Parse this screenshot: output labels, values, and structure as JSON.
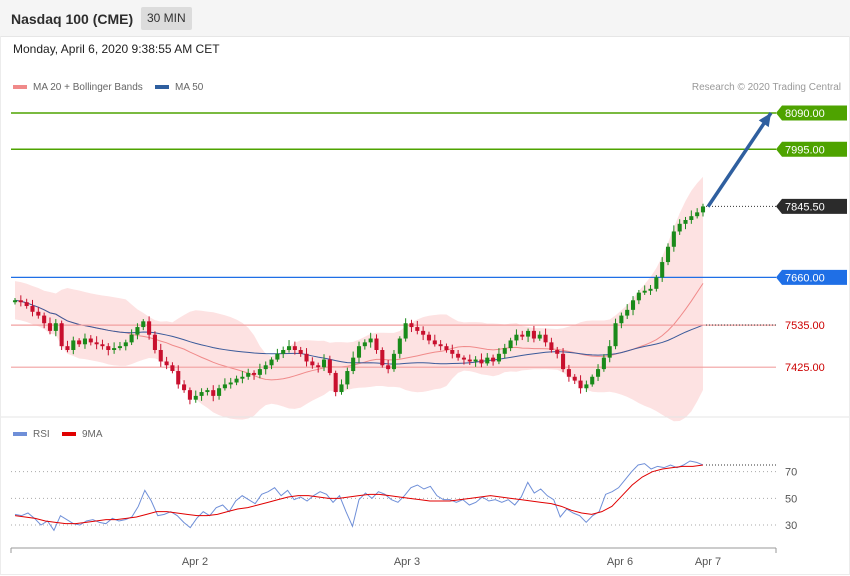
{
  "header": {
    "title": "Nasdaq 100 (CME)",
    "timeframe": "30 MIN"
  },
  "datetime": "Monday, April 6, 2020 9:38:55 AM CET",
  "copyright": "Research © 2020 Trading Central",
  "colors": {
    "green": "#4ea300",
    "blue": "#1f6fe6",
    "red": "#cc0000",
    "candle_up": "#1a8a1a",
    "candle_down": "#c8102e",
    "bollinger": "#fde2e2",
    "ma20": "#f08a8a",
    "ma50": "#3a5a9a",
    "rsi": "#6f8fd8",
    "rsi_ma": "#e00000",
    "arrow": "#2f5f9f"
  },
  "chart_data": [
    {
      "type": "candlestick",
      "legend": [
        {
          "label": "MA 20 + Bollinger Bands",
          "color": "#f08a8a"
        },
        {
          "label": "MA 50",
          "color": "#2f5f9f"
        }
      ],
      "ylim": [
        7300,
        8150
      ],
      "levels": [
        {
          "value": 8090.0,
          "label": "8090.00",
          "kind": "resistance"
        },
        {
          "value": 7995.0,
          "label": "7995.00",
          "kind": "resistance"
        },
        {
          "value": 7845.5,
          "label": "7845.50",
          "kind": "last"
        },
        {
          "value": 7660.0,
          "label": "7660.00",
          "kind": "pivot"
        },
        {
          "value": 7535.0,
          "label": "7535.00",
          "kind": "support"
        },
        {
          "value": 7425.0,
          "label": "7425.00",
          "kind": "support"
        }
      ],
      "target_arrow": {
        "from": 7845,
        "to": 8090
      },
      "closes": [
        7600,
        7595,
        7585,
        7570,
        7560,
        7540,
        7520,
        7540,
        7480,
        7470,
        7495,
        7485,
        7500,
        7490,
        7485,
        7480,
        7470,
        7475,
        7480,
        7490,
        7510,
        7530,
        7545,
        7510,
        7470,
        7440,
        7430,
        7415,
        7380,
        7365,
        7340,
        7350,
        7360,
        7365,
        7350,
        7370,
        7380,
        7385,
        7395,
        7400,
        7410,
        7405,
        7420,
        7430,
        7445,
        7460,
        7470,
        7480,
        7470,
        7460,
        7440,
        7430,
        7425,
        7445,
        7410,
        7360,
        7380,
        7415,
        7450,
        7480,
        7490,
        7500,
        7470,
        7430,
        7420,
        7460,
        7500,
        7540,
        7530,
        7520,
        7510,
        7495,
        7485,
        7480,
        7470,
        7460,
        7450,
        7445,
        7440,
        7445,
        7435,
        7450,
        7440,
        7460,
        7475,
        7495,
        7510,
        7505,
        7520,
        7500,
        7510,
        7490,
        7470,
        7460,
        7420,
        7400,
        7390,
        7370,
        7380,
        7400,
        7420,
        7450,
        7480,
        7540,
        7560,
        7575,
        7600,
        7620,
        7625,
        7630,
        7660,
        7700,
        7740,
        7780,
        7800,
        7810,
        7820,
        7830,
        7845.5
      ]
    },
    {
      "type": "line",
      "legend": [
        {
          "label": "RSI",
          "color": "#6f8fd8"
        },
        {
          "label": "9MA",
          "color": "#e00000"
        }
      ],
      "ylim": [
        15,
        90
      ],
      "y_ticks": [
        "70",
        "50",
        "30"
      ],
      "x_ticks": [
        "Apr 2",
        "Apr 3",
        "Apr 6",
        "Apr 7"
      ],
      "rsi": [
        38,
        37,
        39,
        35,
        30,
        33,
        26,
        37,
        34,
        31,
        30,
        33,
        34,
        32,
        31,
        35,
        33,
        34,
        36,
        44,
        56,
        48,
        37,
        38,
        40,
        37,
        32,
        28,
        35,
        40,
        37,
        43,
        45,
        40,
        48,
        52,
        49,
        46,
        53,
        55,
        58,
        52,
        56,
        49,
        51,
        48,
        52,
        55,
        53,
        47,
        52,
        40,
        29,
        49,
        54,
        50,
        55,
        53,
        49,
        47,
        52,
        58,
        60,
        57,
        59,
        52,
        49,
        49,
        47,
        49,
        45,
        47,
        51,
        48,
        49,
        47,
        49,
        45,
        51,
        62,
        54,
        57,
        52,
        49,
        36,
        42,
        39,
        37,
        32,
        37,
        40,
        53,
        55,
        58,
        64,
        70,
        75,
        76,
        72,
        74,
        73,
        75,
        73,
        75,
        78,
        77,
        75
      ]
    }
  ],
  "rsi_ma": [
    37,
    36,
    35,
    33,
    32,
    31,
    31,
    32,
    33,
    34,
    34,
    35,
    36,
    38,
    40,
    40,
    39,
    38,
    37,
    37,
    38,
    40,
    42,
    43,
    45,
    47,
    49,
    51,
    52,
    52,
    51,
    50,
    50,
    51,
    52,
    53,
    53,
    52,
    51,
    50,
    49,
    48,
    48,
    48,
    49,
    50,
    51,
    52,
    51,
    50,
    49,
    48,
    47,
    46,
    44,
    41,
    39,
    38,
    40,
    44,
    52,
    60,
    66,
    70,
    72,
    73,
    74,
    74,
    75
  ]
}
